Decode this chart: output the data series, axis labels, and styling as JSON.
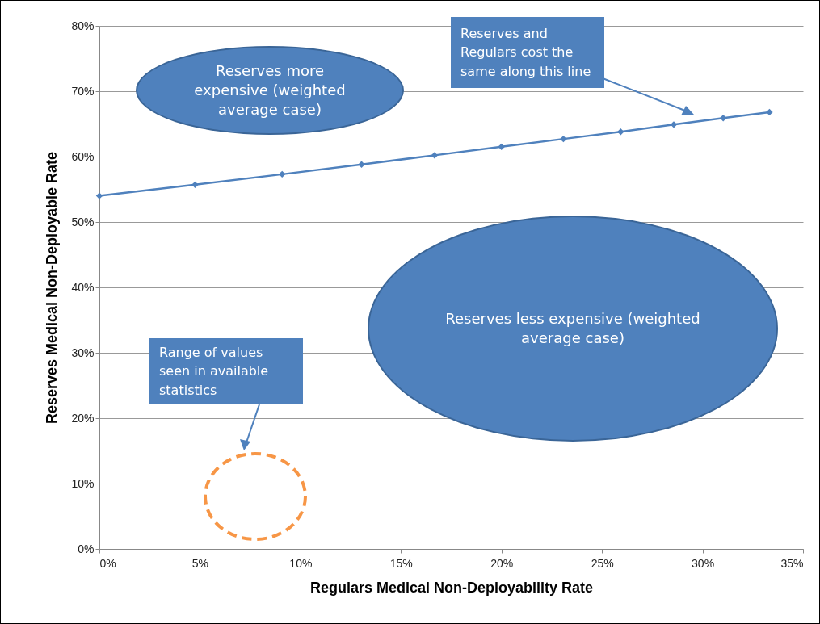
{
  "chart_data": {
    "type": "line",
    "xlabel": "Regulars Medical Non-Deployability Rate",
    "ylabel": "Reserves Medical Non-Deployable Rate",
    "x": [
      0,
      4.76,
      9.09,
      13.04,
      16.67,
      20,
      23.08,
      25.93,
      28.57,
      31.03,
      33.33
    ],
    "series": [
      {
        "color": "#4f81bd",
        "values": [
          54.0,
          55.7,
          57.3,
          58.8,
          60.2,
          61.5,
          62.7,
          63.8,
          64.9,
          65.9,
          66.8
        ]
      }
    ],
    "xlim": [
      0,
      35
    ],
    "xticks": [
      {
        "value": 0,
        "label": "0%"
      },
      {
        "value": 5,
        "label": "5%"
      },
      {
        "value": 10,
        "label": "10%"
      },
      {
        "value": 15,
        "label": "15%"
      },
      {
        "value": 20,
        "label": "20%"
      },
      {
        "value": 25,
        "label": "25%"
      },
      {
        "value": 30,
        "label": "30%"
      },
      {
        "value": 35,
        "label": "35%"
      }
    ],
    "ylim": [
      0,
      80
    ],
    "yticks": [
      {
        "value": 0,
        "label": "0%"
      },
      {
        "value": 10,
        "label": "10%"
      },
      {
        "value": 20,
        "label": "20%"
      },
      {
        "value": 30,
        "label": "30%"
      },
      {
        "value": 40,
        "label": "40%"
      },
      {
        "value": 50,
        "label": "50%"
      },
      {
        "value": 60,
        "label": "60%"
      },
      {
        "value": 70,
        "label": "70%"
      },
      {
        "value": 80,
        "label": "80%"
      }
    ],
    "grid": "y",
    "marker": "diamond",
    "line_style": "solid",
    "annotations": [
      "Reserves more expensive (weighted average case)",
      "Reserves and Regulars cost the same along this line",
      "Reserves less expensive (weighted average case)",
      "Range of values seen in available statistics"
    ]
  }
}
